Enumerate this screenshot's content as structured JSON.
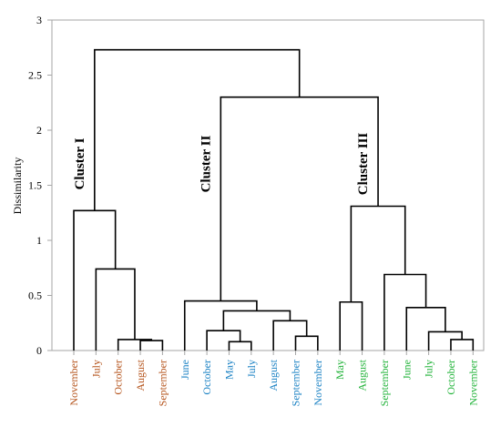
{
  "chart_data": {
    "type": "dendrogram",
    "ylabel": "Dissimilarity",
    "ylim": [
      0,
      3
    ],
    "y_ticks": [
      {
        "value": 0,
        "label": "0"
      },
      {
        "value": 0.5,
        "label": "0.5"
      },
      {
        "value": 1,
        "label": "1"
      },
      {
        "value": 1.5,
        "label": "1.5"
      },
      {
        "value": 2,
        "label": "2"
      },
      {
        "value": 2.5,
        "label": "2.5"
      },
      {
        "value": 3,
        "label": "3"
      }
    ],
    "grid": false,
    "colors": {
      "cluster_I": "#b5541c",
      "cluster_II": "#1b82c4",
      "cluster_III": "#22b33a"
    },
    "leaves": [
      {
        "label": "November",
        "cluster": "I"
      },
      {
        "label": "July",
        "cluster": "I"
      },
      {
        "label": "October",
        "cluster": "I"
      },
      {
        "label": "August",
        "cluster": "I"
      },
      {
        "label": "September",
        "cluster": "I"
      },
      {
        "label": "June",
        "cluster": "II"
      },
      {
        "label": "October",
        "cluster": "II"
      },
      {
        "label": "May",
        "cluster": "II"
      },
      {
        "label": "July",
        "cluster": "II"
      },
      {
        "label": "August",
        "cluster": "II"
      },
      {
        "label": "September",
        "cluster": "II"
      },
      {
        "label": "November",
        "cluster": "II"
      },
      {
        "label": "May",
        "cluster": "III"
      },
      {
        "label": "August",
        "cluster": "III"
      },
      {
        "label": "September",
        "cluster": "III"
      },
      {
        "label": "June",
        "cluster": "III"
      },
      {
        "label": "July",
        "cluster": "III"
      },
      {
        "label": "October",
        "cluster": "III"
      },
      {
        "label": "November",
        "cluster": "III"
      }
    ],
    "merges": [
      {
        "left": "L3",
        "right": "L4",
        "height": 0.09
      },
      {
        "left": "L2",
        "right": "M0",
        "height": 0.1
      },
      {
        "left": "L1",
        "right": "M1",
        "height": 0.74
      },
      {
        "left": "L0",
        "right": "M2",
        "height": 1.27
      },
      {
        "left": "L7",
        "right": "L8",
        "height": 0.08
      },
      {
        "left": "L6",
        "right": "M4",
        "height": 0.18
      },
      {
        "left": "L10",
        "right": "L11",
        "height": 0.13
      },
      {
        "left": "L9",
        "right": "M6",
        "height": 0.27
      },
      {
        "left": "M5",
        "right": "M7",
        "height": 0.36
      },
      {
        "left": "L5",
        "right": "M8",
        "height": 0.45
      },
      {
        "left": "L12",
        "right": "L13",
        "height": 0.44
      },
      {
        "left": "L17",
        "right": "L18",
        "height": 0.1
      },
      {
        "left": "L16",
        "right": "M11",
        "height": 0.17
      },
      {
        "left": "L15",
        "right": "M12",
        "height": 0.39
      },
      {
        "left": "L14",
        "right": "M13",
        "height": 0.69
      },
      {
        "left": "M10",
        "right": "M14",
        "height": 1.31
      },
      {
        "left": "M9",
        "right": "M15",
        "height": 2.3
      },
      {
        "left": "M3",
        "right": "M16",
        "height": 2.73
      }
    ],
    "cluster_labels": [
      {
        "text": "Cluster I",
        "cluster": "I"
      },
      {
        "text": "Cluster II",
        "cluster": "II"
      },
      {
        "text": "Cluster III",
        "cluster": "III"
      }
    ]
  }
}
